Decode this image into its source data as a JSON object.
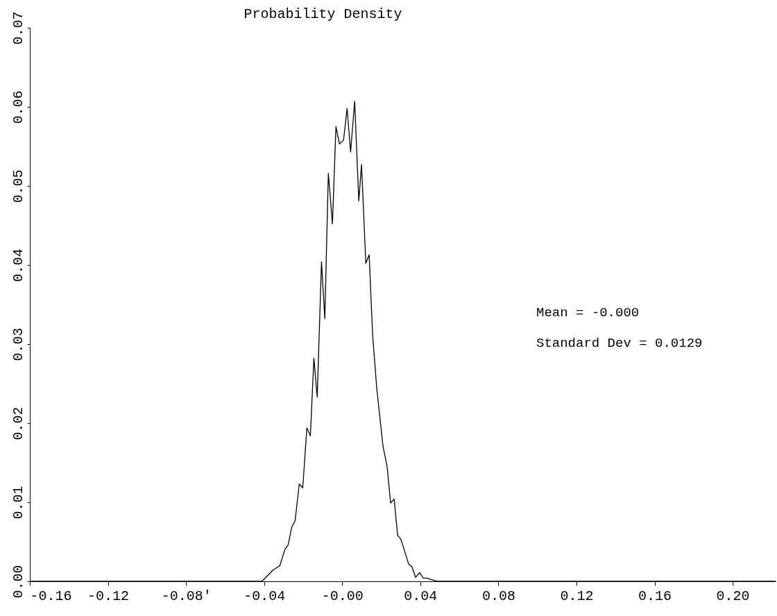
{
  "chart_data": {
    "type": "line",
    "title": "Probability Density",
    "x": [
      -0.16,
      -0.0411,
      -0.0355,
      -0.0319,
      -0.0294,
      -0.0277,
      -0.0259,
      -0.0241,
      -0.022,
      -0.0202,
      -0.0181,
      -0.0163,
      -0.0145,
      -0.0128,
      -0.0106,
      -0.0089,
      -0.0071,
      -0.005,
      -0.0032,
      -0.0014,
      0.0007,
      0.0025,
      0.0043,
      0.0064,
      0.0085,
      0.0099,
      0.0121,
      0.0138,
      0.0156,
      0.0177,
      0.0209,
      0.023,
      0.0248,
      0.0266,
      0.0284,
      0.0301,
      0.034,
      0.0358,
      0.0376,
      0.0397,
      0.0415,
      0.0433,
      0.0457,
      0.0486,
      0.222
    ],
    "series": [
      {
        "color": "#000000",
        "values": [
          0,
          0,
          0.0014,
          0.002,
          0.004,
          0.0046,
          0.0068,
          0.0077,
          0.0123,
          0.0118,
          0.0194,
          0.0184,
          0.0282,
          0.0233,
          0.0404,
          0.0332,
          0.0516,
          0.0452,
          0.0575,
          0.0553,
          0.0558,
          0.0598,
          0.0543,
          0.0607,
          0.0481,
          0.0527,
          0.0402,
          0.0413,
          0.0311,
          0.0244,
          0.0171,
          0.0145,
          0.0099,
          0.0104,
          0.0058,
          0.0053,
          0.0022,
          0.0018,
          0.0005,
          0.0011,
          0.0004,
          0.0004,
          0.0002,
          0,
          0
        ]
      }
    ],
    "xlim": [
      -0.16,
      0.222
    ],
    "ylim": [
      0,
      0.07
    ],
    "xticks": [
      -0.16,
      -0.12,
      {
        "value": -0.08,
        "label": "-0.08'"
      },
      -0.04,
      {
        "value": 0,
        "label": "-0.00"
      },
      0.04,
      0.08,
      0.12,
      0.16,
      {
        "value": 0.2,
        "label": "0.20"
      }
    ],
    "yticks": [
      {
        "value": 0,
        "label": "0.00"
      },
      0.01,
      0.02,
      0.03,
      0.04,
      0.05,
      0.06,
      0.07
    ],
    "annotations": [
      "Mean =  -0.000",
      "Standard Dev = 0.0129"
    ],
    "grid": false,
    "marker": "none",
    "line_style": "solid"
  }
}
